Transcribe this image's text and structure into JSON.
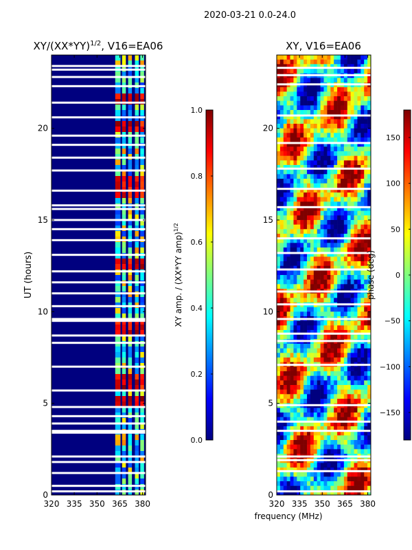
{
  "figure": {
    "suptitle": "2020-03-21 0.0-24.0",
    "shared_xlabel": "frequency (MHz)"
  },
  "colors": {
    "jet": [
      "#00007f",
      "#0000ff",
      "#007fff",
      "#00ffff",
      "#7fff7f",
      "#ffff00",
      "#ff7f00",
      "#ff0000",
      "#7f0000"
    ]
  },
  "chart_data": [
    {
      "type": "heatmap",
      "name": "amplitude-ratio",
      "title": "XY/(XX*YY)",
      "title_exponent": "1/2",
      "title_suffix": ", V16=EA06",
      "xlabel": "",
      "ylabel": "UT (hours)",
      "xlim": [
        320,
        382
      ],
      "ylim": [
        0,
        24
      ],
      "xticks": [
        320,
        335,
        350,
        365,
        380
      ],
      "xtick_labels": [
        "320",
        "335",
        "350",
        "365",
        "380"
      ],
      "yticks": [
        0,
        5,
        10,
        15,
        20
      ],
      "ytick_labels": [
        "0",
        "5",
        "10",
        "15",
        "20"
      ],
      "channel_bands_mhz": [
        [
          362,
          365.5
        ],
        [
          366.5,
          369
        ],
        [
          370.5,
          373
        ],
        [
          375,
          377.5
        ],
        [
          378.5,
          381
        ]
      ],
      "bright_ut_hours": [
        21.8,
        20.3,
        17.3,
        16.8,
        12.8,
        9.3,
        6.3,
        5.3
      ],
      "flagged_ut_hours": [
        0.2,
        0.5,
        1.2,
        1.8,
        2.1,
        3.4,
        3.5,
        3.9,
        4.3,
        4.8,
        5.7,
        7.0,
        8.3,
        8.7,
        9.5,
        9.6,
        10.3,
        11.0,
        11.6,
        12.2,
        13.1,
        13.9,
        14.5,
        15.0,
        15.6,
        15.8,
        16.6,
        17.7,
        18.4,
        19.1,
        19.6,
        20.6,
        21.4,
        22.3,
        22.8,
        23.2,
        23.4
      ],
      "colorbar": {
        "label": "XY amp. / (XX*YY amp)",
        "label_exponent": "1/2",
        "range": [
          0.0,
          1.0
        ],
        "ticks": [
          0.0,
          0.2,
          0.4,
          0.6,
          0.8,
          1.0
        ],
        "tick_labels": [
          "0.0",
          "0.2",
          "0.4",
          "0.6",
          "0.8",
          "1.0"
        ]
      }
    },
    {
      "type": "heatmap",
      "name": "phase",
      "title": "XY, V16=EA06",
      "xlabel": "frequency (MHz)",
      "ylabel": "",
      "xlim": [
        320,
        382
      ],
      "ylim": [
        0,
        24
      ],
      "xticks": [
        320,
        335,
        350,
        365,
        380
      ],
      "xtick_labels": [
        "320",
        "335",
        "350",
        "365",
        "380"
      ],
      "yticks": [
        0,
        5,
        10,
        15,
        20
      ],
      "ytick_labels": [
        "0",
        "5",
        "10",
        "15",
        "20"
      ],
      "flagged_ut_hours": [
        0.2,
        1.3,
        1.9,
        2.1,
        3.5,
        4.0,
        4.9,
        7.1,
        8.4,
        8.8,
        9.6,
        10.4,
        11.1,
        12.3,
        13.2,
        14.0,
        15.7,
        16.7,
        17.8,
        19.2,
        20.7,
        22.4,
        22.9,
        23.3
      ],
      "colorbar": {
        "label": "phase (deg)",
        "range": [
          -180,
          180
        ],
        "ticks": [
          -150,
          -100,
          -50,
          0,
          50,
          100,
          150
        ],
        "tick_labels": [
          "−150",
          "−100",
          "−50",
          "0",
          "50",
          "100",
          "150"
        ]
      }
    }
  ]
}
